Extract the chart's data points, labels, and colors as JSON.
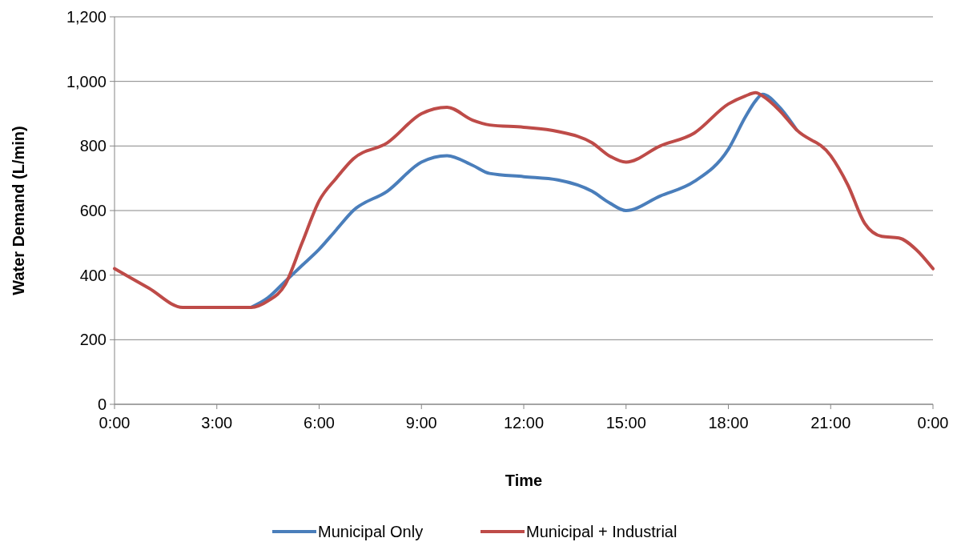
{
  "chart_data": {
    "type": "line",
    "xlabel": "Time",
    "ylabel": "Water Demand (L/min)",
    "x": [
      0,
      1,
      2,
      3,
      4,
      4.5,
      5,
      5.5,
      6,
      6.5,
      7,
      8,
      9,
      9.75,
      10.5,
      11,
      12,
      13,
      14,
      14.5,
      15,
      16,
      17,
      18,
      18.5,
      18.8,
      19,
      19.5,
      20,
      21,
      21.5,
      22,
      22.5,
      23,
      23.5,
      24
    ],
    "series": [
      {
        "name": "Municipal Only",
        "color": "#4a7ebb",
        "values": [
          null,
          null,
          null,
          null,
          300,
          330,
          380,
          430,
          480,
          540,
          600,
          660,
          750,
          770,
          740,
          715,
          705,
          695,
          660,
          625,
          600,
          645,
          690,
          790,
          890,
          940,
          960,
          920,
          850,
          null,
          null,
          null,
          null,
          null,
          null,
          null
        ]
      },
      {
        "name": "Municipal + Industrial",
        "color": "#be4b48",
        "values": [
          420,
          360,
          300,
          300,
          300,
          320,
          370,
          500,
          630,
          700,
          760,
          810,
          900,
          920,
          880,
          865,
          858,
          845,
          810,
          770,
          750,
          800,
          840,
          930,
          955,
          965,
          955,
          910,
          850,
          770,
          680,
          560,
          520,
          515,
          480,
          420
        ]
      }
    ],
    "xlim": [
      0,
      24
    ],
    "xticks": [
      {
        "value": 0,
        "label": "0:00"
      },
      {
        "value": 3,
        "label": "3:00"
      },
      {
        "value": 6,
        "label": "6:00"
      },
      {
        "value": 9,
        "label": "9:00"
      },
      {
        "value": 12,
        "label": "12:00"
      },
      {
        "value": 15,
        "label": "15:00"
      },
      {
        "value": 18,
        "label": "18:00"
      },
      {
        "value": 21,
        "label": "21:00"
      },
      {
        "value": 24,
        "label": "0:00"
      }
    ],
    "ylim": [
      0,
      1200
    ],
    "yticks": [
      0,
      {
        "value": 200,
        "label": "200"
      },
      {
        "value": 400,
        "label": "400"
      },
      {
        "value": 600,
        "label": "600"
      },
      {
        "value": 800,
        "label": "800"
      },
      {
        "value": 1000,
        "label": "1,000"
      },
      {
        "value": 1200,
        "label": "1,200"
      }
    ],
    "grid": "y",
    "legend": "bottom",
    "marker": "none",
    "line_style": "solid"
  }
}
